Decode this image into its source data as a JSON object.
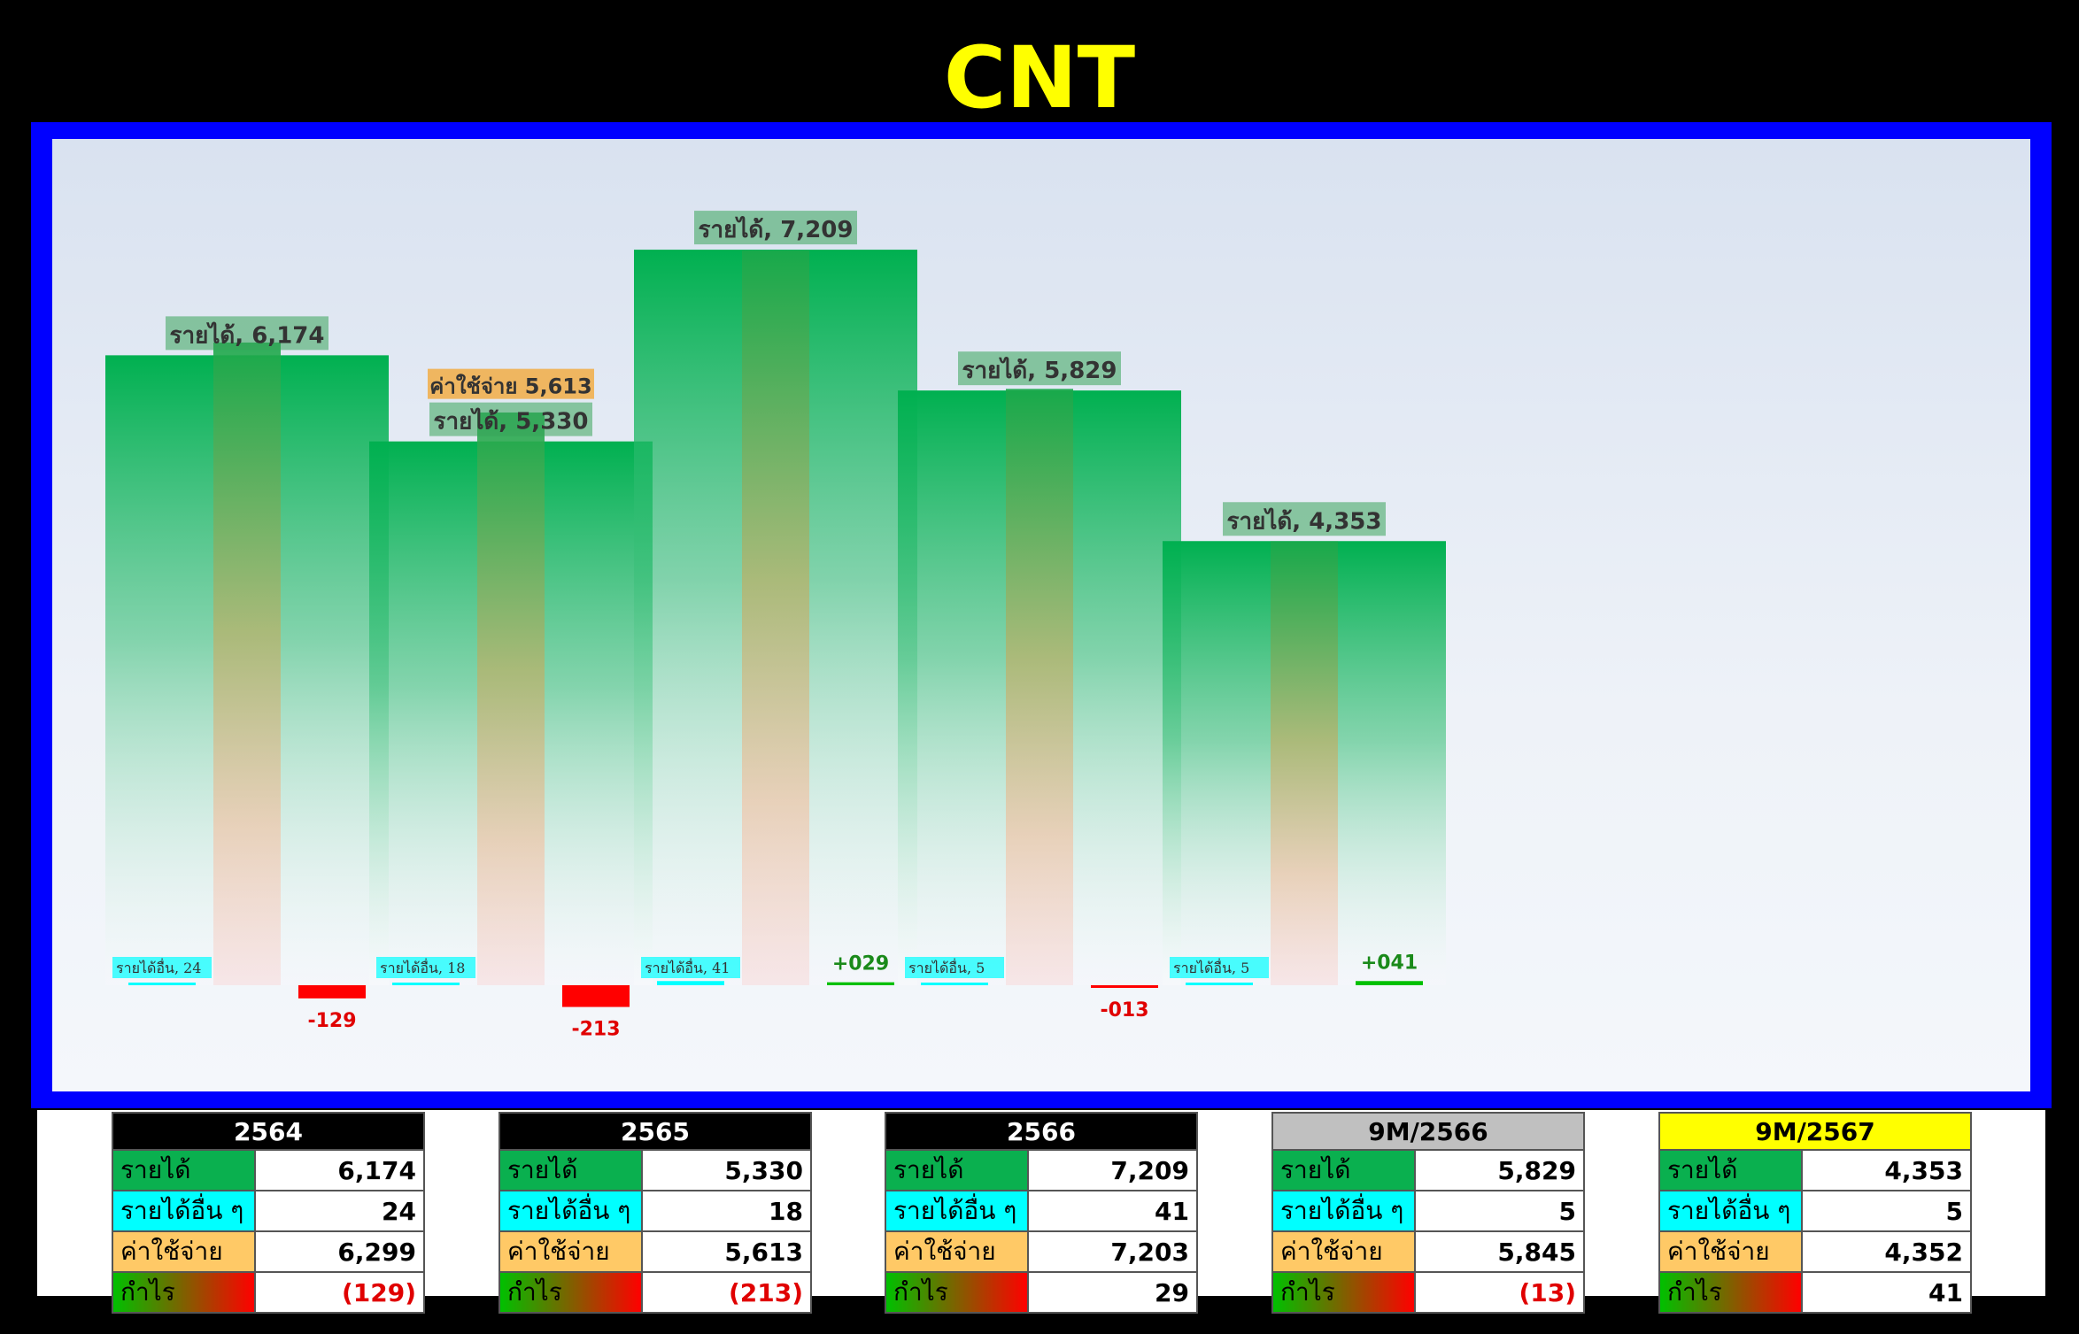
{
  "title": "CNT",
  "chart_data": {
    "type": "bar",
    "categories": [
      "2564",
      "2565",
      "2566",
      "9M/2566",
      "9M/2567"
    ],
    "series": [
      {
        "name": "รายได้",
        "values": [
          6174,
          5330,
          7209,
          5829,
          4353
        ]
      },
      {
        "name": "รายได้อื่น ๆ",
        "values": [
          24,
          18,
          41,
          5,
          5
        ]
      },
      {
        "name": "ค่าใช้จ่าย",
        "values": [
          6299,
          5613,
          7203,
          5845,
          4352
        ]
      },
      {
        "name": "กำไร",
        "values": [
          -129,
          -213,
          29,
          -13,
          41
        ]
      }
    ],
    "data_labels": {
      "revenue": [
        "รายได้, 6,174",
        "รายได้, 5,330",
        "รายได้, 7,209",
        "รายได้, 5,829",
        "รายได้, 4,353"
      ],
      "other": [
        "รายได้อื่น, 24",
        "รายได้อื่น, 18",
        "รายได้อื่น, 41",
        "รายได้อื่น, 5",
        "รายได้อื่น, 5"
      ],
      "expense": [
        "",
        "ค่าใช้จ่าย 5,613",
        "",
        "",
        ""
      ],
      "profit": [
        "-129",
        "-213",
        "+029",
        "-013",
        "+041"
      ]
    },
    "ylim": [
      -300,
      8000
    ],
    "colors": {
      "revenue": "#00b050",
      "other": "#00ffff",
      "expense": "#f2a93b",
      "loss": "#ff0000",
      "gain": "#00c000"
    }
  },
  "tables": [
    {
      "header": "2564",
      "header_bg": "#000000",
      "header_fg": "#ffffff",
      "rows": [
        [
          "รายได้",
          "6,174"
        ],
        [
          "รายได้อื่น ๆ",
          "24"
        ],
        [
          "ค่าใช้จ่าย",
          "6,299"
        ],
        [
          "กำไร",
          "(129)"
        ]
      ]
    },
    {
      "header": "2565",
      "header_bg": "#000000",
      "header_fg": "#ffffff",
      "rows": [
        [
          "รายได้",
          "5,330"
        ],
        [
          "รายได้อื่น ๆ",
          "18"
        ],
        [
          "ค่าใช้จ่าย",
          "5,613"
        ],
        [
          "กำไร",
          "(213)"
        ]
      ]
    },
    {
      "header": "2566",
      "header_bg": "#000000",
      "header_fg": "#ffffff",
      "rows": [
        [
          "รายได้",
          "7,209"
        ],
        [
          "รายได้อื่น ๆ",
          "41"
        ],
        [
          "ค่าใช้จ่าย",
          "7,203"
        ],
        [
          "กำไร",
          "29"
        ]
      ]
    },
    {
      "header": "9M/2566",
      "header_bg": "#c0c0c0",
      "header_fg": "#000000",
      "rows": [
        [
          "รายได้",
          "5,829"
        ],
        [
          "รายได้อื่น ๆ",
          "5"
        ],
        [
          "ค่าใช้จ่าย",
          "5,845"
        ],
        [
          "กำไร",
          "(13)"
        ]
      ]
    },
    {
      "header": "9M/2567",
      "header_bg": "#ffff00",
      "header_fg": "#000000",
      "rows": [
        [
          "รายได้",
          "4,353"
        ],
        [
          "รายได้อื่น ๆ",
          "5"
        ],
        [
          "ค่าใช้จ่าย",
          "4,352"
        ],
        [
          "กำไร",
          "41"
        ]
      ]
    }
  ]
}
